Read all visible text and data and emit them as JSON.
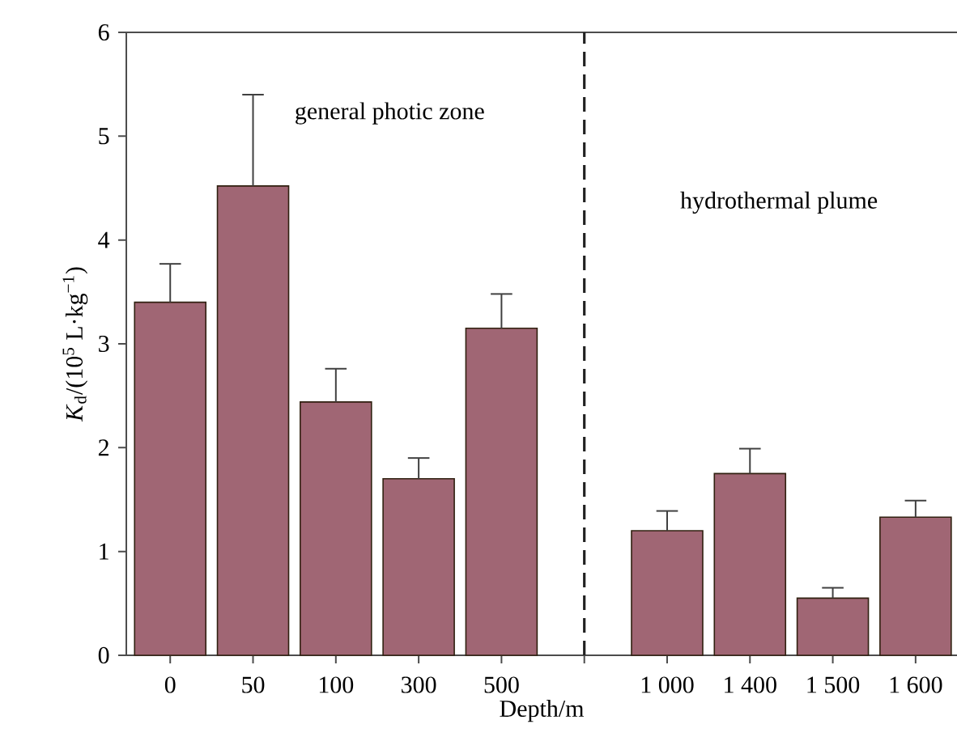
{
  "chart_data": {
    "type": "bar",
    "xlabel": "Depth/m",
    "ylabel": "*K*$_{d}$/(10$^{5}$ L·kg$^{−1}$)",
    "categories": [
      "0",
      "50",
      "100",
      "300",
      "500",
      null,
      "1 000",
      "1 400",
      "1 500",
      "1 600"
    ],
    "values": [
      3.4,
      4.52,
      2.44,
      1.7,
      3.15,
      null,
      1.2,
      1.75,
      0.55,
      1.33
    ],
    "errors": [
      [
        3.4,
        3.77
      ],
      [
        4.52,
        5.4
      ],
      [
        2.44,
        2.76
      ],
      [
        1.7,
        1.9
      ],
      [
        3.15,
        3.48
      ],
      null,
      [
        1.2,
        1.39
      ],
      [
        1.75,
        1.99
      ],
      [
        0.55,
        0.65
      ],
      [
        1.33,
        1.49
      ]
    ],
    "color": "#a06674",
    "ylim": [
      0,
      6
    ],
    "yticks": [
      0,
      1,
      2,
      3,
      4,
      5,
      6
    ],
    "annotations": [
      "general photic zone",
      "hydrothermal plume"
    ]
  }
}
